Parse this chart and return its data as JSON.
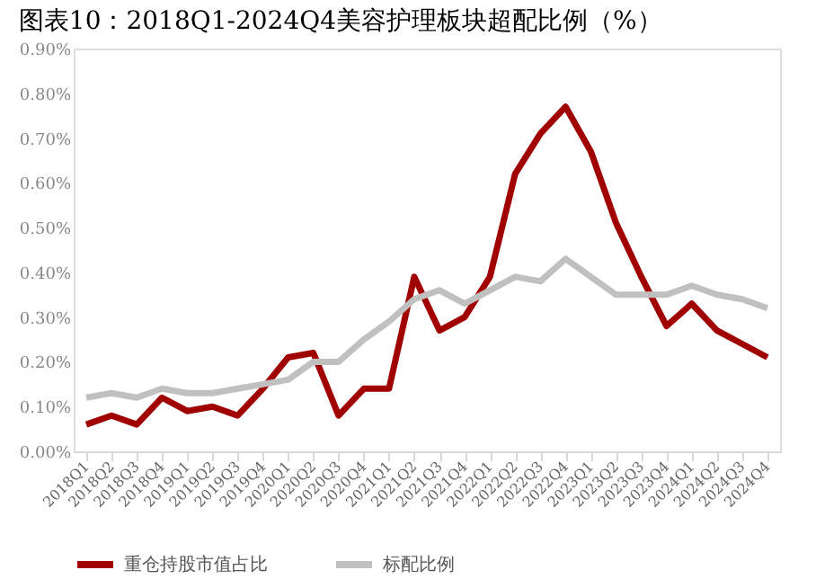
{
  "chart_data": {
    "type": "line",
    "title": "图表10：2018Q1-2024Q4美容护理板块超配比例（%）",
    "categories": [
      "2018Q1",
      "2018Q2",
      "2018Q3",
      "2018Q4",
      "2019Q1",
      "2019Q2",
      "2019Q3",
      "2019Q4",
      "2020Q1",
      "2020Q2",
      "2020Q3",
      "2020Q4",
      "2021Q1",
      "2021Q2",
      "2021Q3",
      "2021Q4",
      "2022Q1",
      "2022Q2",
      "2022Q3",
      "2022Q4",
      "2023Q1",
      "2023Q2",
      "2023Q3",
      "2023Q4",
      "2024Q1",
      "2024Q2",
      "2024Q3",
      "2024Q4"
    ],
    "series": [
      {
        "name": "重仓持股市值占比",
        "color": "#a00000",
        "values": [
          0.06,
          0.08,
          0.06,
          0.12,
          0.09,
          0.1,
          0.08,
          0.14,
          0.21,
          0.22,
          0.08,
          0.14,
          0.14,
          0.39,
          0.27,
          0.3,
          0.39,
          0.62,
          0.71,
          0.77,
          0.67,
          0.51,
          0.39,
          0.28,
          0.33,
          0.27,
          0.24,
          0.21
        ]
      },
      {
        "name": "标配比例",
        "color": "#c0c0c0",
        "values": [
          0.12,
          0.13,
          0.12,
          0.14,
          0.13,
          0.13,
          0.14,
          0.15,
          0.16,
          0.2,
          0.2,
          0.25,
          0.29,
          0.34,
          0.36,
          0.33,
          0.36,
          0.39,
          0.38,
          0.43,
          0.39,
          0.35,
          0.35,
          0.35,
          0.37,
          0.35,
          0.34,
          0.32
        ]
      }
    ],
    "ylim": [
      0,
      0.9
    ],
    "yticks": [
      {
        "value": 0,
        "label": "0.00%"
      },
      {
        "value": 0.1,
        "label": "0.10%"
      },
      {
        "value": 0.2,
        "label": "0.20%"
      },
      {
        "value": 0.3,
        "label": "0.30%"
      },
      {
        "value": 0.4,
        "label": "0.40%"
      },
      {
        "value": 0.5,
        "label": "0.50%"
      },
      {
        "value": 0.6,
        "label": "0.60%"
      },
      {
        "value": 0.7,
        "label": "0.70%"
      },
      {
        "value": 0.8,
        "label": "0.80%"
      },
      {
        "value": 0.9,
        "label": "0.90%"
      }
    ],
    "grid": false,
    "legend": "bottom",
    "marker": "none",
    "line_style": "solid"
  }
}
